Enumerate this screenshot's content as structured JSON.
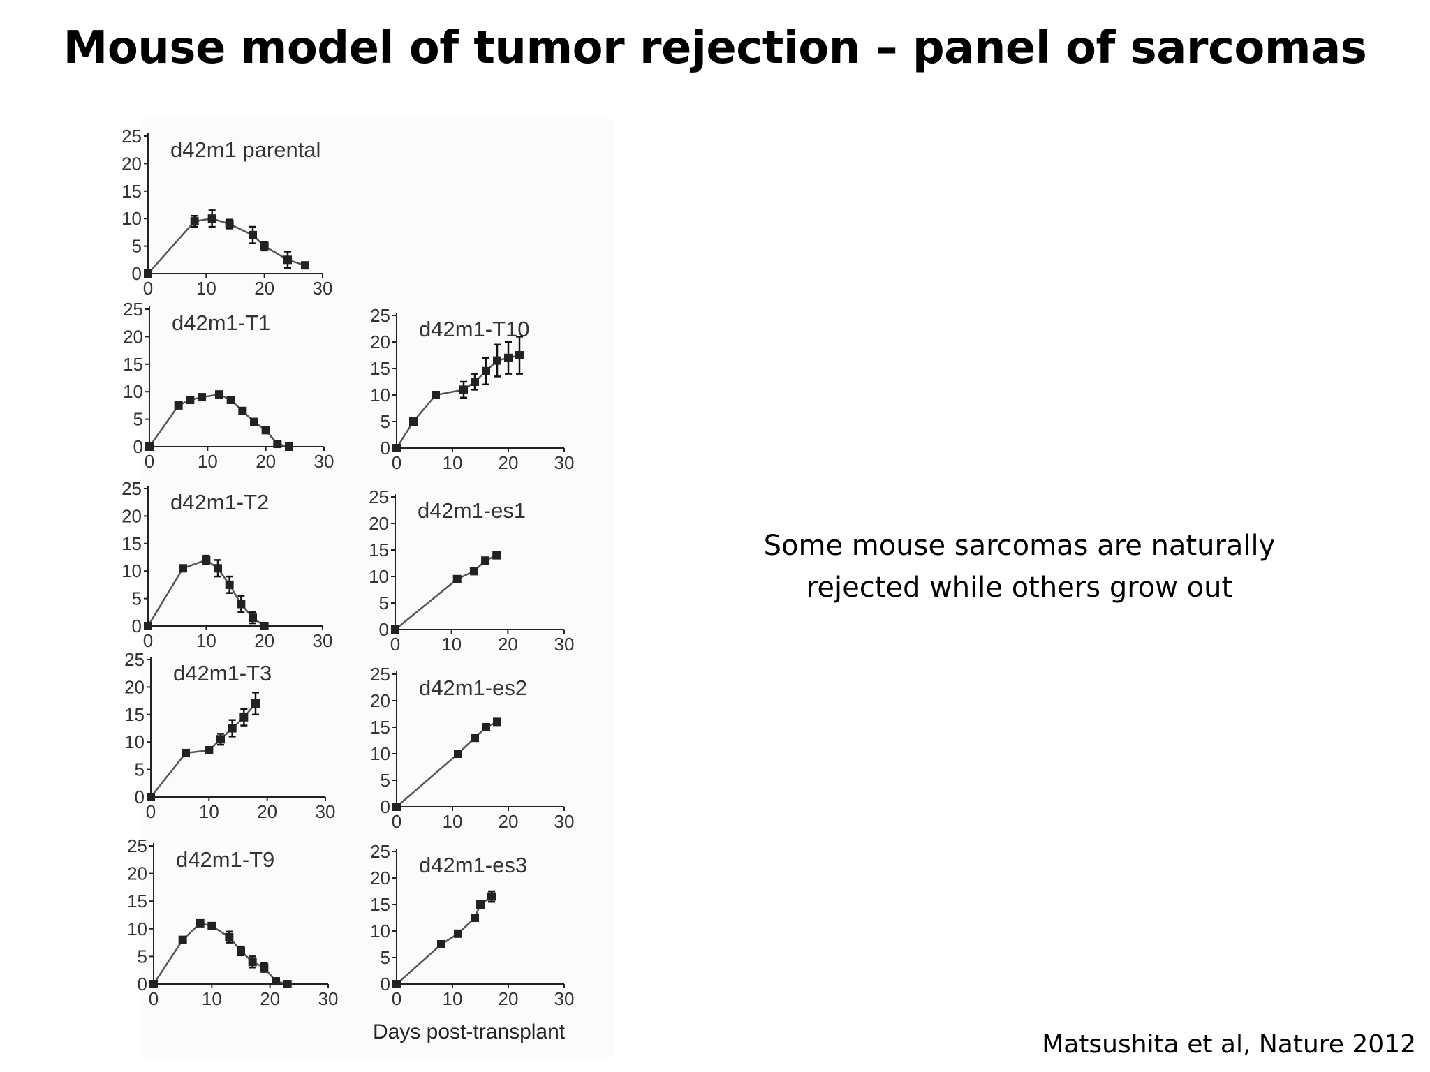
{
  "slide": {
    "title": "Mouse model of tumor rejection – panel of sarcomas",
    "note": "Some mouse sarcomas are naturally rejected while others grow out",
    "citation": "Matsushita et al, Nature 2012"
  },
  "figure": {
    "xlabel": "Days post-transplant"
  },
  "chart_data": [
    {
      "type": "line",
      "title": "d42m1 parental",
      "xlim": [
        0,
        30
      ],
      "ylim": [
        0,
        25
      ],
      "xticks": [
        0,
        10,
        20,
        30
      ],
      "yticks": [
        0,
        5,
        10,
        15,
        20,
        25
      ],
      "x": [
        0,
        8,
        11,
        14,
        18,
        20,
        24,
        27
      ],
      "y": [
        0,
        9.5,
        10,
        9,
        7,
        5,
        2.5,
        1.5
      ],
      "err": [
        0,
        1,
        1.5,
        0.8,
        1.5,
        0.8,
        1.5,
        0.5
      ]
    },
    {
      "type": "line",
      "title": "d42m1-T1",
      "xlim": [
        0,
        30
      ],
      "ylim": [
        0,
        25
      ],
      "xticks": [
        0,
        10,
        20,
        30
      ],
      "yticks": [
        0,
        5,
        10,
        15,
        20,
        25
      ],
      "x": [
        0,
        5,
        7,
        9,
        12,
        14,
        16,
        18,
        20,
        22,
        24
      ],
      "y": [
        0,
        7.5,
        8.5,
        9,
        9.5,
        8.5,
        6.5,
        4.5,
        3,
        0.5,
        0
      ],
      "err": [
        0,
        0,
        0,
        0,
        0.5,
        0.5,
        0,
        0,
        0,
        0,
        0
      ]
    },
    {
      "type": "line",
      "title": "d42m1-T10",
      "xlim": [
        0,
        30
      ],
      "ylim": [
        0,
        25
      ],
      "xticks": [
        0,
        10,
        20,
        30
      ],
      "yticks": [
        0,
        5,
        10,
        15,
        20,
        25
      ],
      "x": [
        0,
        3,
        7,
        12,
        14,
        16,
        18,
        20,
        22
      ],
      "y": [
        0,
        5,
        10,
        11,
        12.5,
        14.5,
        16.5,
        17,
        17.5
      ],
      "err": [
        0,
        0,
        0,
        1.5,
        1.5,
        2.5,
        3,
        3,
        3.5
      ]
    },
    {
      "type": "line",
      "title": "d42m1-T2",
      "xlim": [
        0,
        30
      ],
      "ylim": [
        0,
        25
      ],
      "xticks": [
        0,
        10,
        20,
        30
      ],
      "yticks": [
        0,
        5,
        10,
        15,
        20,
        25
      ],
      "x": [
        0,
        6,
        10,
        12,
        14,
        16,
        18,
        20
      ],
      "y": [
        0,
        10.5,
        12,
        10.5,
        7.5,
        4,
        1.5,
        0
      ],
      "err": [
        0,
        0,
        0.8,
        1.5,
        1.5,
        1.5,
        1,
        0
      ]
    },
    {
      "type": "line",
      "title": "d42m1-es1",
      "xlim": [
        0,
        30
      ],
      "ylim": [
        0,
        25
      ],
      "xticks": [
        0,
        10,
        20,
        30
      ],
      "yticks": [
        0,
        5,
        10,
        15,
        20,
        25
      ],
      "x": [
        0,
        11,
        14,
        16,
        18
      ],
      "y": [
        0,
        9.5,
        11,
        13,
        14
      ],
      "err": [
        0,
        0,
        0,
        0,
        0
      ]
    },
    {
      "type": "line",
      "title": "d42m1-T3",
      "xlim": [
        0,
        30
      ],
      "ylim": [
        0,
        25
      ],
      "xticks": [
        0,
        10,
        20,
        30
      ],
      "yticks": [
        0,
        5,
        10,
        15,
        20,
        25
      ],
      "x": [
        0,
        6,
        10,
        12,
        14,
        16,
        18
      ],
      "y": [
        0,
        8,
        8.5,
        10.5,
        12.5,
        14.5,
        17
      ],
      "err": [
        0,
        0,
        0,
        1,
        1.5,
        1.5,
        2
      ]
    },
    {
      "type": "line",
      "title": "d42m1-es2",
      "xlim": [
        0,
        30
      ],
      "ylim": [
        0,
        25
      ],
      "xticks": [
        0,
        10,
        20,
        30
      ],
      "yticks": [
        0,
        5,
        10,
        15,
        20,
        25
      ],
      "x": [
        0,
        11,
        14,
        16,
        18
      ],
      "y": [
        0,
        10,
        13,
        15,
        16
      ],
      "err": [
        0,
        0,
        0,
        0,
        0
      ]
    },
    {
      "type": "line",
      "title": "d42m1-T9",
      "xlim": [
        0,
        30
      ],
      "ylim": [
        0,
        25
      ],
      "xticks": [
        0,
        10,
        20,
        30
      ],
      "yticks": [
        0,
        5,
        10,
        15,
        20,
        25
      ],
      "x": [
        0,
        5,
        8,
        10,
        13,
        15,
        17,
        19,
        21,
        23
      ],
      "y": [
        0,
        8,
        11,
        10.5,
        8.5,
        6,
        4,
        3,
        0.5,
        0
      ],
      "err": [
        0,
        0,
        0,
        0,
        1,
        0.8,
        1,
        0.8,
        0,
        0
      ]
    },
    {
      "type": "line",
      "title": "d42m1-es3",
      "xlim": [
        0,
        30
      ],
      "ylim": [
        0,
        25
      ],
      "xticks": [
        0,
        10,
        20,
        30
      ],
      "yticks": [
        0,
        5,
        10,
        15,
        20,
        25
      ],
      "x": [
        0,
        8,
        11,
        14,
        15,
        17
      ],
      "y": [
        0,
        7.5,
        9.5,
        12.5,
        15,
        16.5
      ],
      "err": [
        0,
        0,
        0,
        0,
        0,
        1
      ]
    }
  ]
}
